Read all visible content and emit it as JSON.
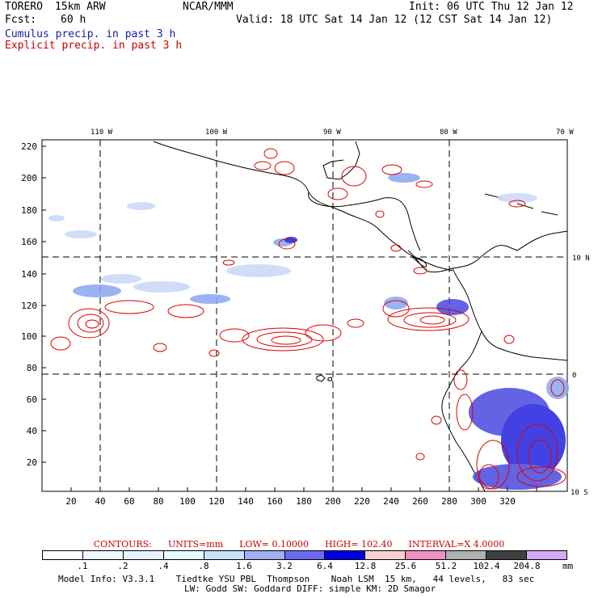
{
  "header": {
    "model": "TORERO",
    "resolution": "15km ARW",
    "org": "NCAR/MMM",
    "init": "Init: 06 UTC Thu 12 Jan 12",
    "fcst_label": "Fcst:",
    "fcst_value": "60 h",
    "valid": "Valid: 18 UTC Sat 14 Jan 12 (12 CST Sat 14 Jan 12)"
  },
  "legend": {
    "cumulus": "Cumulus precip. in past 3 h",
    "explicit": "Explicit precip. in past 3 h"
  },
  "map": {
    "lon_labels": [
      "110 W",
      "100 W",
      "90 W",
      "80 W",
      "70 W"
    ],
    "lat_labels": [
      "10 N",
      "0",
      "10 S"
    ],
    "y_ticks": [
      "220",
      "200",
      "180",
      "160",
      "140",
      "120",
      "100",
      "80",
      "60",
      "40",
      "20"
    ],
    "x_ticks": [
      "20",
      "40",
      "60",
      "80",
      "100",
      "120",
      "140",
      "160",
      "180",
      "200",
      "220",
      "240",
      "260",
      "280",
      "300",
      "320"
    ]
  },
  "contours": {
    "prefix": "CONTOURS:",
    "units": "UNITS=mm",
    "low": "LOW= 0.10000",
    "high": "HIGH= 102.40",
    "interval": "INTERVAL=X 4.0000"
  },
  "colorbar": {
    "labels": [
      ".1",
      ".2",
      ".4",
      ".8",
      "1.6",
      "3.2",
      "6.4",
      "12.8",
      "25.6",
      "51.2",
      "102.4",
      "204.8"
    ],
    "unit": "mm",
    "colors": [
      "#ffffff",
      "#f0f6ff",
      "#e6f3ff",
      "#e6ffff",
      "#c8e0f8",
      "#a0b0f0",
      "#6a6af0",
      "#0000e6",
      "#f8d0d0",
      "#f090c0",
      "#b0b0b0",
      "#404040",
      "#d8a8f8"
    ]
  },
  "footer": {
    "line1": "Model Info: V3.3.1    Tiedtke YSU PBL  Thompson    Noah LSM  15 km,   44 levels,   83 sec",
    "line2": "LW: Godd SW: Goddard DIFF: simple KM: 2D Smagor"
  }
}
